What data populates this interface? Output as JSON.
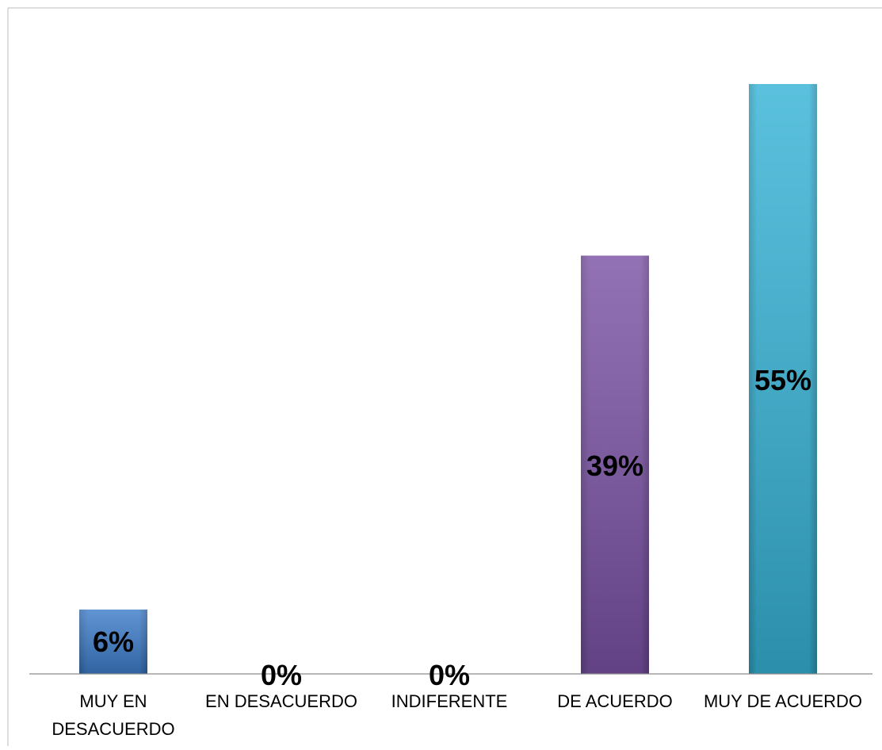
{
  "chart_data": {
    "type": "bar",
    "categories": [
      [
        "MUY EN",
        "DESACUERDO"
      ],
      [
        "EN DESACUERDO"
      ],
      [
        "INDIFERENTE"
      ],
      [
        "DE ACUERDO"
      ],
      [
        "MUY DE ACUERDO"
      ]
    ],
    "values": [
      6,
      0,
      0,
      39,
      55
    ],
    "data_labels": [
      "6%",
      "0%",
      "0%",
      "39%",
      "55%"
    ],
    "colors": [
      "#3d7cc9",
      "#3d7cc9",
      "#3d7cc9",
      "#7a52a4",
      "#36b3d6"
    ],
    "title": "",
    "xlabel": "",
    "ylabel": "",
    "ylim": [
      0,
      55
    ],
    "grid": false,
    "legend": "none"
  }
}
